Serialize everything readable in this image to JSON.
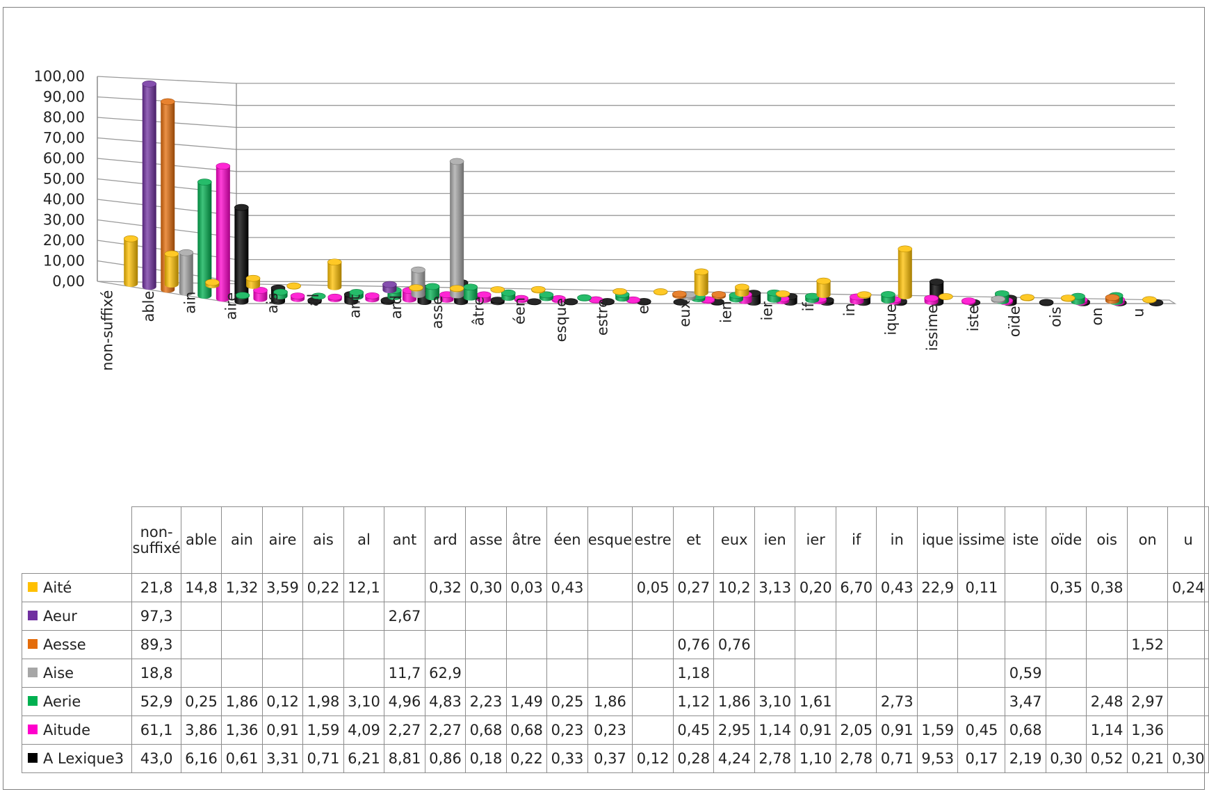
{
  "chart_data": {
    "type": "bar",
    "style": "3d-column",
    "y_ticks": [
      "100,00",
      "90,00",
      "80,00",
      "70,00",
      "60,00",
      "50,00",
      "40,00",
      "30,00",
      "20,00",
      "10,00",
      "0,00"
    ],
    "ylim": [
      0,
      100
    ],
    "grid": true,
    "legend": "table-below",
    "categories": [
      "non-suffixé",
      "able",
      "ain",
      "aire",
      "ais",
      "al",
      "ant",
      "ard",
      "asse",
      "âtre",
      "éen",
      "esque",
      "estre",
      "et",
      "eux",
      "ien",
      "ier",
      "if",
      "in",
      "ique",
      "issime",
      "iste",
      "oïde",
      "ois",
      "on",
      "u"
    ],
    "table_headers": [
      "non-suffixé",
      "able",
      "ain",
      "aire",
      "ais",
      "al",
      "ant",
      "ard",
      "asse",
      "âtre",
      "éen",
      "esque",
      "estre",
      "et",
      "eux",
      "ien",
      "ier",
      "if",
      "in",
      "ique",
      "issime",
      "iste",
      "oïde",
      "ois",
      "on",
      "u"
    ],
    "series": [
      {
        "name": "Aité",
        "color": "#FFC000",
        "values": [
          "21,8",
          "14,8",
          "1,32",
          "3,59",
          "0,22",
          "12,1",
          "",
          "0,32",
          "0,30",
          "0,03",
          "0,43",
          "",
          "0,05",
          "0,27",
          "10,2",
          "3,13",
          "0,20",
          "6,70",
          "0,43",
          "22,9",
          "0,11",
          "",
          "0,35",
          "0,38",
          "",
          "0,24"
        ]
      },
      {
        "name": "Aeur",
        "color": "#7030A0",
        "values": [
          "97,3",
          "",
          "",
          "",
          "",
          "",
          "2,67",
          "",
          "",
          "",
          "",
          "",
          "",
          "",
          "",
          "",
          "",
          "",
          "",
          "",
          "",
          "",
          "",
          "",
          "",
          ""
        ]
      },
      {
        "name": "Aesse",
        "color": "#E46C0A",
        "values": [
          "89,3",
          "",
          "",
          "",
          "",
          "",
          "",
          "",
          "",
          "",
          "",
          "",
          "",
          "0,76",
          "0,76",
          "",
          "",
          "",
          "",
          "",
          "",
          "",
          "",
          "",
          "1,52",
          ""
        ]
      },
      {
        "name": "Aise",
        "color": "#A6A6A6",
        "values": [
          "18,8",
          "",
          "",
          "",
          "",
          "",
          "11,7",
          "62,9",
          "",
          "",
          "",
          "",
          "",
          "1,18",
          "",
          "",
          "",
          "",
          "",
          "",
          "",
          "0,59",
          "",
          "",
          "",
          ""
        ]
      },
      {
        "name": "Aerie",
        "color": "#00B050",
        "values": [
          "52,9",
          "0,25",
          "1,86",
          "0,12",
          "1,98",
          "3,10",
          "4,96",
          "4,83",
          "2,23",
          "1,49",
          "0,25",
          "1,86",
          "",
          "1,12",
          "1,86",
          "3,10",
          "1,61",
          "",
          "2,73",
          "",
          "",
          "3,47",
          "",
          "2,48",
          "2,97",
          ""
        ]
      },
      {
        "name": "Aitude",
        "color": "#FF00CC",
        "values": [
          "61,1",
          "3,86",
          "1,36",
          "0,91",
          "1,59",
          "4,09",
          "2,27",
          "2,27",
          "0,68",
          "0,68",
          "0,23",
          "0,23",
          "",
          "0,45",
          "2,95",
          "1,14",
          "0,91",
          "2,05",
          "0,91",
          "1,59",
          "0,45",
          "0,68",
          "",
          "1,14",
          "1,36",
          ""
        ]
      },
      {
        "name": "A Lexique3",
        "color": "#000000",
        "values": [
          "43,0",
          "6,16",
          "0,61",
          "3,31",
          "0,71",
          "6,21",
          "8,81",
          "0,86",
          "0,18",
          "0,22",
          "0,33",
          "0,37",
          "0,12",
          "0,28",
          "4,24",
          "2,78",
          "1,10",
          "2,78",
          "0,71",
          "9,53",
          "0,17",
          "2,19",
          "0,30",
          "0,52",
          "0,21",
          "0,30"
        ]
      }
    ]
  }
}
